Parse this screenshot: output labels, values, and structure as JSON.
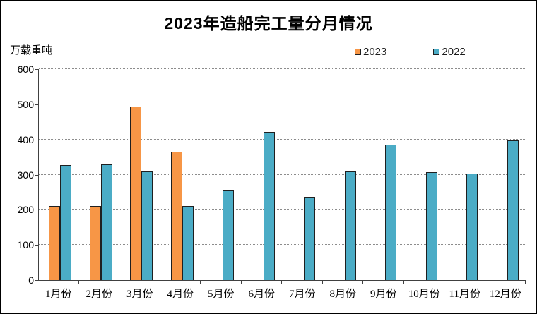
{
  "window": {
    "background": "#ffffff",
    "frame_border_color": "#000000"
  },
  "colors": {
    "bar_border": "#1f1f1f",
    "gridline": "#8c8c8c",
    "axis_line": "#404040",
    "text": "#000000",
    "series_2023": "#F79646",
    "series_2022": "#4BACC6"
  },
  "chart_data": {
    "type": "bar",
    "title": "2023年造船完工量分月情况",
    "unit_label": "万载重吨",
    "categories": [
      "1月份",
      "2月份",
      "3月份",
      "4月份",
      "5月份",
      "6月份",
      "7月份",
      "8月份",
      "9月份",
      "10月份",
      "11月份",
      "12月份"
    ],
    "series": [
      {
        "name": "2023",
        "color": "#F79646",
        "values": [
          211,
          210,
          494,
          365,
          null,
          null,
          null,
          null,
          null,
          null,
          null,
          null
        ]
      },
      {
        "name": "2022",
        "color": "#4BACC6",
        "values": [
          327,
          329,
          309,
          210,
          257,
          421,
          236,
          310,
          386,
          308,
          303,
          397
        ]
      }
    ],
    "ylim": [
      0,
      600
    ],
    "yticks": [
      0,
      100,
      200,
      300,
      400,
      500,
      600
    ],
    "grid": "horizontal-dotted",
    "legend_position": "top-right-above-plot"
  }
}
